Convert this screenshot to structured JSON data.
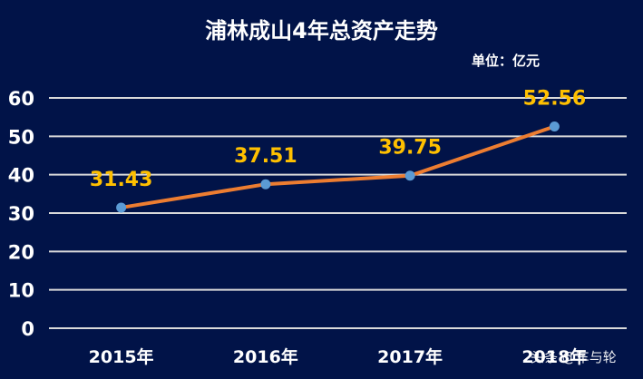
{
  "header": {
    "title": "浦林成山4年总资产走势",
    "unit": "单位：亿元"
  },
  "watermark": "头条 @车与轮",
  "colors": {
    "background": "#011348",
    "line": "#ED7D31",
    "marker": "#5B9BD5",
    "label": "#FFC000",
    "grid": "#D9D9D9",
    "text": "#FFFFFF"
  },
  "chart_data": {
    "type": "line",
    "title": "浦林成山4年总资产走势",
    "subtitle": "单位：亿元",
    "categories": [
      "2015年",
      "2016年",
      "2017年",
      "2018年"
    ],
    "series": [
      {
        "name": "总资产",
        "values": [
          31.43,
          37.51,
          39.75,
          52.56
        ]
      }
    ],
    "data_labels": [
      "31.43",
      "37.51",
      "39.75",
      "52.56"
    ],
    "xlabel": "",
    "ylabel": "",
    "ylim": [
      0,
      60
    ],
    "yticks": [
      0,
      10,
      20,
      30,
      40,
      50,
      60
    ],
    "grid": true,
    "legend": "none"
  }
}
